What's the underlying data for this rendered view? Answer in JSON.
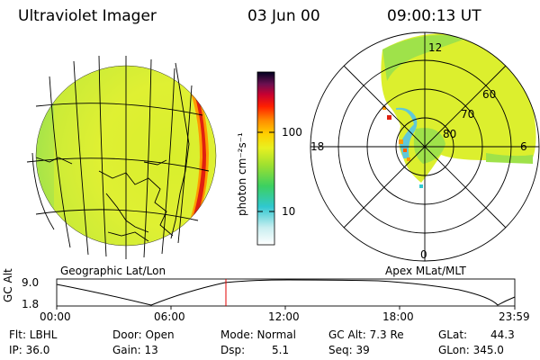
{
  "header": {
    "title": "Ultraviolet Imager",
    "date": "03 Jun 00",
    "time": "09:00:13 UT"
  },
  "colorbar": {
    "label": "photon cm⁻²s⁻¹",
    "ticks": [
      "100",
      "10"
    ]
  },
  "polar": {
    "mlt_labels": [
      "12",
      "18",
      "6",
      "0"
    ],
    "lat_labels": [
      "60",
      "70",
      "80"
    ]
  },
  "panel_labels": {
    "left": "Geographic Lat/Lon",
    "right": "Apex MLat/MLT"
  },
  "altitude_plot": {
    "axis_label": "GC Alt",
    "y_ticks": [
      "9.0",
      "1.8"
    ],
    "x_ticks": [
      "00:00",
      "06:00",
      "12:00",
      "18:00",
      "23:59"
    ],
    "marker_color": "#e00000"
  },
  "info": {
    "flt": "Flt: LBHL",
    "ip": "IP: 36.0",
    "door": "Door: Open",
    "gain": "Gain: 13",
    "mode": "Mode: Normal",
    "dsp": "Dsp:",
    "dsp_val": "5.1",
    "gcalt": "GC Alt: 7.3 Re",
    "seq": "Seq: 39",
    "glat": "GLat:",
    "glat_val": "44.3",
    "glon": "GLon: 345.0"
  }
}
